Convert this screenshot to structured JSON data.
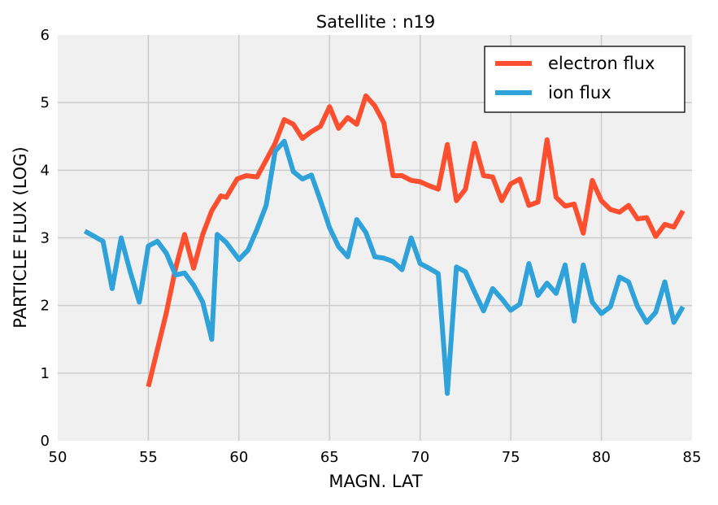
{
  "chart_data": {
    "type": "line",
    "title": "Satellite : n19",
    "xlabel": "MAGN. LAT",
    "ylabel": "PARTICLE FLUX (LOG)",
    "xlim": [
      50,
      85
    ],
    "ylim": [
      0,
      6
    ],
    "xticks": [
      "50",
      "55",
      "60",
      "65",
      "70",
      "75",
      "80",
      "85"
    ],
    "yticks": [
      "0",
      "1",
      "2",
      "3",
      "4",
      "5",
      "6"
    ],
    "grid": true,
    "legend_position": "top-right",
    "series": [
      {
        "name": "electron flux",
        "color": "#fc4f30",
        "x": [
          55.0,
          56.0,
          56.5,
          57.0,
          57.5,
          58.0,
          58.5,
          59.0,
          59.3,
          59.9,
          60.4,
          61.0,
          61.5,
          62.0,
          62.5,
          63.0,
          63.5,
          64.0,
          64.5,
          65.0,
          65.5,
          66.0,
          66.5,
          67.0,
          67.5,
          68.0,
          68.5,
          69.0,
          69.5,
          70.0,
          70.5,
          71.0,
          71.5,
          72.0,
          72.5,
          73.0,
          73.5,
          74.0,
          74.5,
          75.0,
          75.5,
          76.0,
          76.5,
          77.0,
          77.5,
          78.0,
          78.5,
          79.0,
          79.5,
          80.0,
          80.5,
          81.0,
          81.5,
          82.0,
          82.5,
          83.0,
          83.5,
          84.0,
          84.5
        ],
        "values": [
          0.8,
          1.9,
          2.55,
          3.05,
          2.55,
          3.05,
          3.4,
          3.62,
          3.6,
          3.87,
          3.92,
          3.9,
          4.15,
          4.4,
          4.75,
          4.68,
          4.47,
          4.57,
          4.65,
          4.94,
          4.62,
          4.78,
          4.68,
          5.1,
          4.95,
          4.7,
          3.92,
          3.92,
          3.85,
          3.83,
          3.77,
          3.72,
          4.38,
          3.55,
          3.72,
          4.4,
          3.92,
          3.9,
          3.55,
          3.8,
          3.87,
          3.48,
          3.53,
          4.45,
          3.6,
          3.47,
          3.5,
          3.07,
          3.85,
          3.55,
          3.42,
          3.38,
          3.48,
          3.28,
          3.3,
          3.02,
          3.2,
          3.16,
          3.4
        ]
      },
      {
        "name": "ion flux",
        "color": "#30a2da",
        "x": [
          51.5,
          52.5,
          53.0,
          53.5,
          54.0,
          54.5,
          55.0,
          55.5,
          56.0,
          56.5,
          57.0,
          57.5,
          58.0,
          58.5,
          58.8,
          59.3,
          60.0,
          60.5,
          61.0,
          61.5,
          62.0,
          62.5,
          63.0,
          63.5,
          64.0,
          64.5,
          65.0,
          65.5,
          66.0,
          66.5,
          67.0,
          67.5,
          68.0,
          68.5,
          69.0,
          69.5,
          70.0,
          70.5,
          71.0,
          71.5,
          72.0,
          72.5,
          73.0,
          73.5,
          74.0,
          74.5,
          75.0,
          75.5,
          76.0,
          76.5,
          77.0,
          77.5,
          78.0,
          78.5,
          79.0,
          79.5,
          80.0,
          80.5,
          81.0,
          81.5,
          82.0,
          82.5,
          83.0,
          83.5,
          84.0,
          84.5
        ],
        "values": [
          3.1,
          2.95,
          2.25,
          3.0,
          2.5,
          2.05,
          2.88,
          2.95,
          2.77,
          2.45,
          2.48,
          2.3,
          2.05,
          1.5,
          3.05,
          2.93,
          2.68,
          2.82,
          3.13,
          3.48,
          4.28,
          4.43,
          3.98,
          3.87,
          3.93,
          3.55,
          3.15,
          2.87,
          2.72,
          3.27,
          3.08,
          2.72,
          2.7,
          2.65,
          2.53,
          3.0,
          2.62,
          2.55,
          2.47,
          0.7,
          2.57,
          2.5,
          2.2,
          1.92,
          2.25,
          2.1,
          1.93,
          2.02,
          2.62,
          2.15,
          2.33,
          2.18,
          2.6,
          1.77,
          2.6,
          2.05,
          1.88,
          1.98,
          2.42,
          2.35,
          1.98,
          1.75,
          1.9,
          2.35,
          1.75,
          1.98
        ]
      }
    ]
  }
}
